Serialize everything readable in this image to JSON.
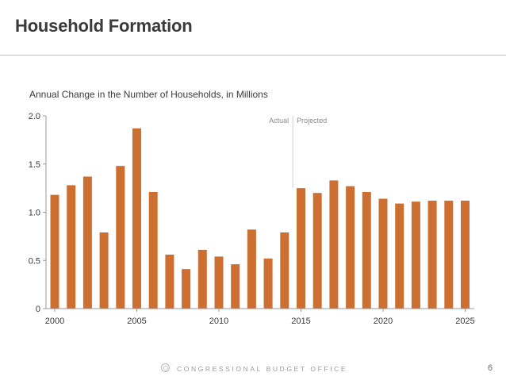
{
  "slide": {
    "title": "Household Formation",
    "footer": "CONGRESSIONAL BUDGET OFFICE",
    "page_number": "6"
  },
  "colors": {
    "bar": "#cd6f31",
    "axis": "#999999",
    "text": "#3a3a3a"
  },
  "chart_data": {
    "type": "bar",
    "title": "Annual Change in the Number of Households, in Millions",
    "xlabel": "",
    "ylabel": "",
    "ylim": [
      0,
      2.0
    ],
    "yticks": [
      "0",
      "0.5",
      "1.0",
      "1.5",
      "2.0"
    ],
    "ytick_values": [
      0,
      0.5,
      1.0,
      1.5,
      2.0
    ],
    "xticks": [
      "2000",
      "2005",
      "2010",
      "2015",
      "2020",
      "2025"
    ],
    "xtick_values": [
      2000,
      2005,
      2010,
      2015,
      2020,
      2025
    ],
    "grid": false,
    "annotations": {
      "actual": "Actual",
      "projected": "Projected",
      "divider_year": 2014.5
    },
    "categories": [
      2000,
      2001,
      2002,
      2003,
      2004,
      2005,
      2006,
      2007,
      2008,
      2009,
      2010,
      2011,
      2012,
      2013,
      2014,
      2015,
      2016,
      2017,
      2018,
      2019,
      2020,
      2021,
      2022,
      2023,
      2024,
      2025
    ],
    "values": [
      1.18,
      1.28,
      1.37,
      0.79,
      1.48,
      1.87,
      1.21,
      0.56,
      0.41,
      0.61,
      0.54,
      0.46,
      0.82,
      0.52,
      0.79,
      1.25,
      1.2,
      1.33,
      1.27,
      1.21,
      1.14,
      1.09,
      1.11,
      1.12,
      1.12,
      1.12
    ]
  }
}
